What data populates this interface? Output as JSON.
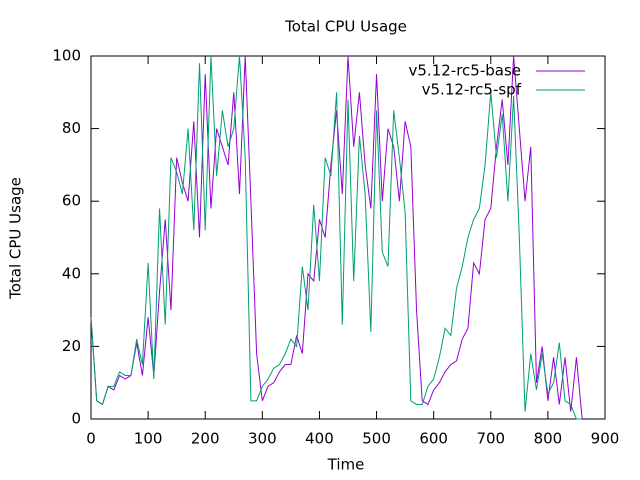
{
  "chart_data": {
    "type": "line",
    "title": "Total CPU Usage",
    "xlabel": "Time",
    "ylabel": "Total CPU Usage",
    "x": [
      0,
      10,
      20,
      30,
      40,
      50,
      60,
      70,
      80,
      90,
      100,
      110,
      120,
      130,
      140,
      150,
      160,
      170,
      180,
      190,
      200,
      210,
      220,
      230,
      240,
      250,
      260,
      270,
      280,
      290,
      300,
      310,
      320,
      330,
      340,
      350,
      360,
      370,
      380,
      390,
      400,
      410,
      420,
      430,
      440,
      450,
      460,
      470,
      480,
      490,
      500,
      510,
      520,
      530,
      540,
      550,
      560,
      570,
      580,
      590,
      600,
      610,
      620,
      630,
      640,
      650,
      660,
      670,
      680,
      690,
      700,
      710,
      720,
      730,
      740,
      750,
      760,
      770,
      780,
      790,
      800,
      810,
      820,
      830,
      840,
      850,
      860
    ],
    "series": [
      {
        "name": "v5.12-rc5-base",
        "color": "#9400d3",
        "values": [
          28,
          5,
          4,
          9,
          8,
          12,
          11,
          12,
          21,
          12,
          28,
          12,
          35,
          55,
          30,
          72,
          65,
          60,
          82,
          50,
          95,
          58,
          80,
          75,
          70,
          90,
          62,
          100,
          60,
          18,
          5,
          9,
          10,
          13,
          15,
          15,
          23,
          18,
          40,
          38,
          55,
          50,
          70,
          85,
          62,
          100,
          75,
          90,
          70,
          58,
          95,
          60,
          80,
          75,
          60,
          82,
          75,
          30,
          5,
          4,
          8,
          10,
          13,
          15,
          16,
          22,
          25,
          43,
          40,
          55,
          58,
          75,
          88,
          70,
          100,
          80,
          60,
          75,
          10,
          20,
          5,
          17,
          4,
          17,
          2,
          17,
          0
        ]
      },
      {
        "name": "v5.12-rc5-spf",
        "color": "#009e73",
        "values": [
          28,
          5,
          4,
          9,
          9,
          13,
          12,
          12,
          22,
          15,
          43,
          11,
          58,
          26,
          72,
          68,
          62,
          80,
          52,
          98,
          52,
          100,
          67,
          85,
          75,
          80,
          100,
          72,
          5,
          5,
          9,
          11,
          14,
          15,
          18,
          22,
          20,
          42,
          30,
          59,
          38,
          72,
          67,
          90,
          26,
          88,
          38,
          78,
          62,
          24,
          85,
          46,
          42,
          85,
          72,
          57,
          5,
          4,
          4,
          9,
          11,
          17,
          25,
          23,
          36,
          42,
          50,
          55,
          58,
          70,
          90,
          72,
          84,
          60,
          89,
          50,
          2,
          18,
          8,
          18,
          7,
          10,
          21,
          5,
          4,
          0,
          0
        ]
      }
    ],
    "xlim": [
      0,
      900
    ],
    "xticks": [
      0,
      100,
      200,
      300,
      400,
      500,
      600,
      700,
      800,
      900
    ],
    "ylim": [
      0,
      100
    ],
    "yticks": [
      0,
      20,
      40,
      60,
      80,
      100
    ],
    "grid": false,
    "legend": "top-right"
  }
}
